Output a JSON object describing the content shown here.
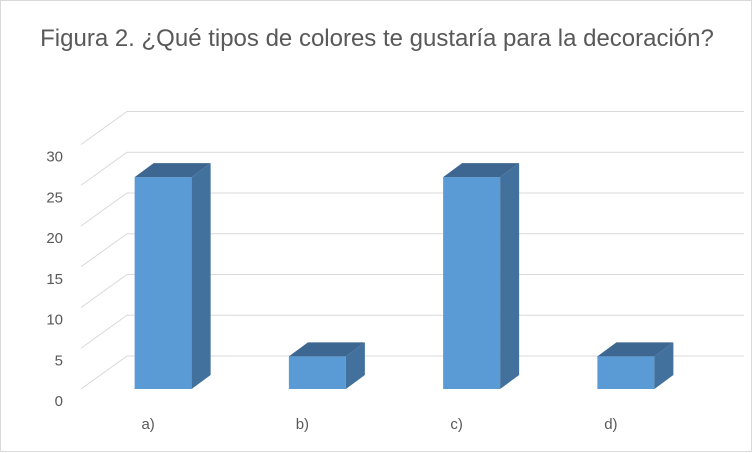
{
  "chart_data": {
    "type": "bar",
    "style": "3d-column",
    "title": "Figura 2. ¿Qué tipos de colores te gustaría para la decoración?",
    "categories": [
      "a)",
      "b)",
      "c)",
      "d)"
    ],
    "values": [
      26,
      4,
      26,
      4
    ],
    "y_ticks": [
      "0",
      "5",
      "10",
      "15",
      "20",
      "25",
      "30"
    ],
    "ylim": [
      0,
      30
    ],
    "grid": true,
    "legend": "none",
    "colors": {
      "front": "#5b9bd5",
      "side": "#41719c",
      "top": "#3d6791",
      "grid": "#d9d9d9",
      "text": "#595959"
    }
  }
}
